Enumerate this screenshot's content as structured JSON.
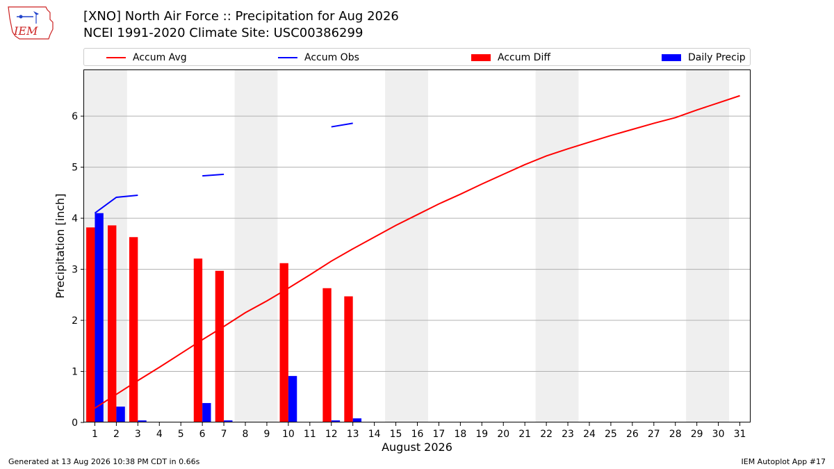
{
  "header": {
    "title": "[XNO] North Air Force :: Precipitation for Aug 2026",
    "subtitle": "NCEI 1991-2020 Climate Site: USC00386299",
    "logo_text": "IEM"
  },
  "legend": {
    "items": [
      {
        "label": "Accum Avg",
        "kind": "line",
        "color": "#ff0000"
      },
      {
        "label": "Accum Obs",
        "kind": "line",
        "color": "#0000ff"
      },
      {
        "label": "Accum Diff",
        "kind": "box",
        "color": "#ff0000"
      },
      {
        "label": "Daily Precip",
        "kind": "box",
        "color": "#0000ff"
      }
    ]
  },
  "footer": {
    "left": "Generated at 13 Aug 2026 10:38 PM CDT in 0.66s",
    "right": "IEM Autoplot App #17"
  },
  "chart_data": {
    "type": "bar",
    "xlabel": "August 2026",
    "ylabel": "Precipitation [inch]",
    "xlim": [
      0.5,
      31.5
    ],
    "ylim": [
      0,
      6.9
    ],
    "yticks": [
      0,
      1,
      2,
      3,
      4,
      5,
      6
    ],
    "xticks": [
      1,
      2,
      3,
      4,
      5,
      6,
      7,
      8,
      9,
      10,
      11,
      12,
      13,
      14,
      15,
      16,
      17,
      18,
      19,
      20,
      21,
      22,
      23,
      24,
      25,
      26,
      27,
      28,
      29,
      30,
      31
    ],
    "grid": "y",
    "weekend_shading": [
      [
        1,
        2
      ],
      [
        8,
        9
      ],
      [
        15,
        16
      ],
      [
        22,
        23
      ],
      [
        29,
        30
      ]
    ],
    "series": [
      {
        "name": "Accum Avg",
        "kind": "line",
        "color": "#ff0000",
        "x": [
          1,
          2,
          3,
          4,
          5,
          6,
          7,
          8,
          9,
          10,
          11,
          12,
          13,
          14,
          15,
          16,
          17,
          18,
          19,
          20,
          21,
          22,
          23,
          24,
          25,
          26,
          27,
          28,
          29,
          30,
          31
        ],
        "values": [
          0.28,
          0.55,
          0.82,
          1.08,
          1.35,
          1.62,
          1.88,
          2.15,
          2.38,
          2.63,
          2.89,
          3.16,
          3.4,
          3.63,
          3.86,
          4.07,
          4.28,
          4.47,
          4.67,
          4.86,
          5.05,
          5.22,
          5.36,
          5.49,
          5.62,
          5.74,
          5.86,
          5.97,
          6.12,
          6.26,
          6.4
        ]
      },
      {
        "name": "Accum Obs",
        "kind": "line",
        "color": "#0000ff",
        "segments": [
          {
            "x": [
              1,
              2,
              3
            ],
            "values": [
              4.1,
              4.41,
              4.45
            ]
          },
          {
            "x": [
              6,
              7
            ],
            "values": [
              4.83,
              4.86
            ]
          },
          {
            "x": [
              12,
              13
            ],
            "values": [
              5.79,
              5.86
            ]
          }
        ]
      },
      {
        "name": "Accum Diff",
        "kind": "bar",
        "color": "#ff0000",
        "x": [
          1,
          2,
          3,
          6,
          7,
          10,
          12,
          13
        ],
        "values": [
          3.82,
          3.86,
          3.63,
          3.21,
          2.97,
          3.12,
          2.63,
          2.47
        ]
      },
      {
        "name": "Daily Precip",
        "kind": "bar",
        "color": "#0000ff",
        "x": [
          1,
          2,
          3,
          6,
          7,
          10,
          12,
          13
        ],
        "values": [
          4.1,
          0.31,
          0.04,
          0.38,
          0.04,
          0.91,
          0.04,
          0.08
        ]
      }
    ]
  }
}
